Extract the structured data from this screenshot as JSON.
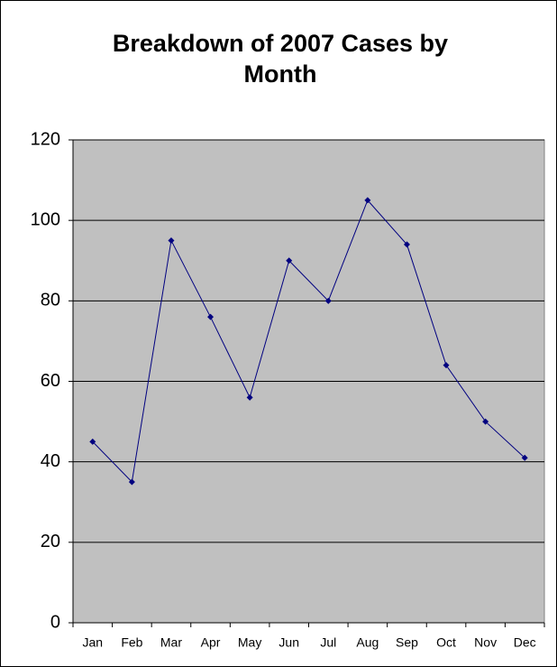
{
  "chart_data": {
    "type": "line",
    "title": "Breakdown of 2007 Cases by Month",
    "categories": [
      "Jan",
      "Feb",
      "Mar",
      "Apr",
      "May",
      "Jun",
      "Jul",
      "Aug",
      "Sep",
      "Oct",
      "Nov",
      "Dec"
    ],
    "values": [
      45,
      35,
      95,
      76,
      56,
      90,
      80,
      105,
      94,
      64,
      50,
      41
    ],
    "color": "#000080",
    "plot_background": "#c0c0c0",
    "ylim": [
      0,
      120
    ],
    "yticks": [
      0,
      20,
      40,
      60,
      80,
      100,
      120
    ],
    "grid": true
  }
}
